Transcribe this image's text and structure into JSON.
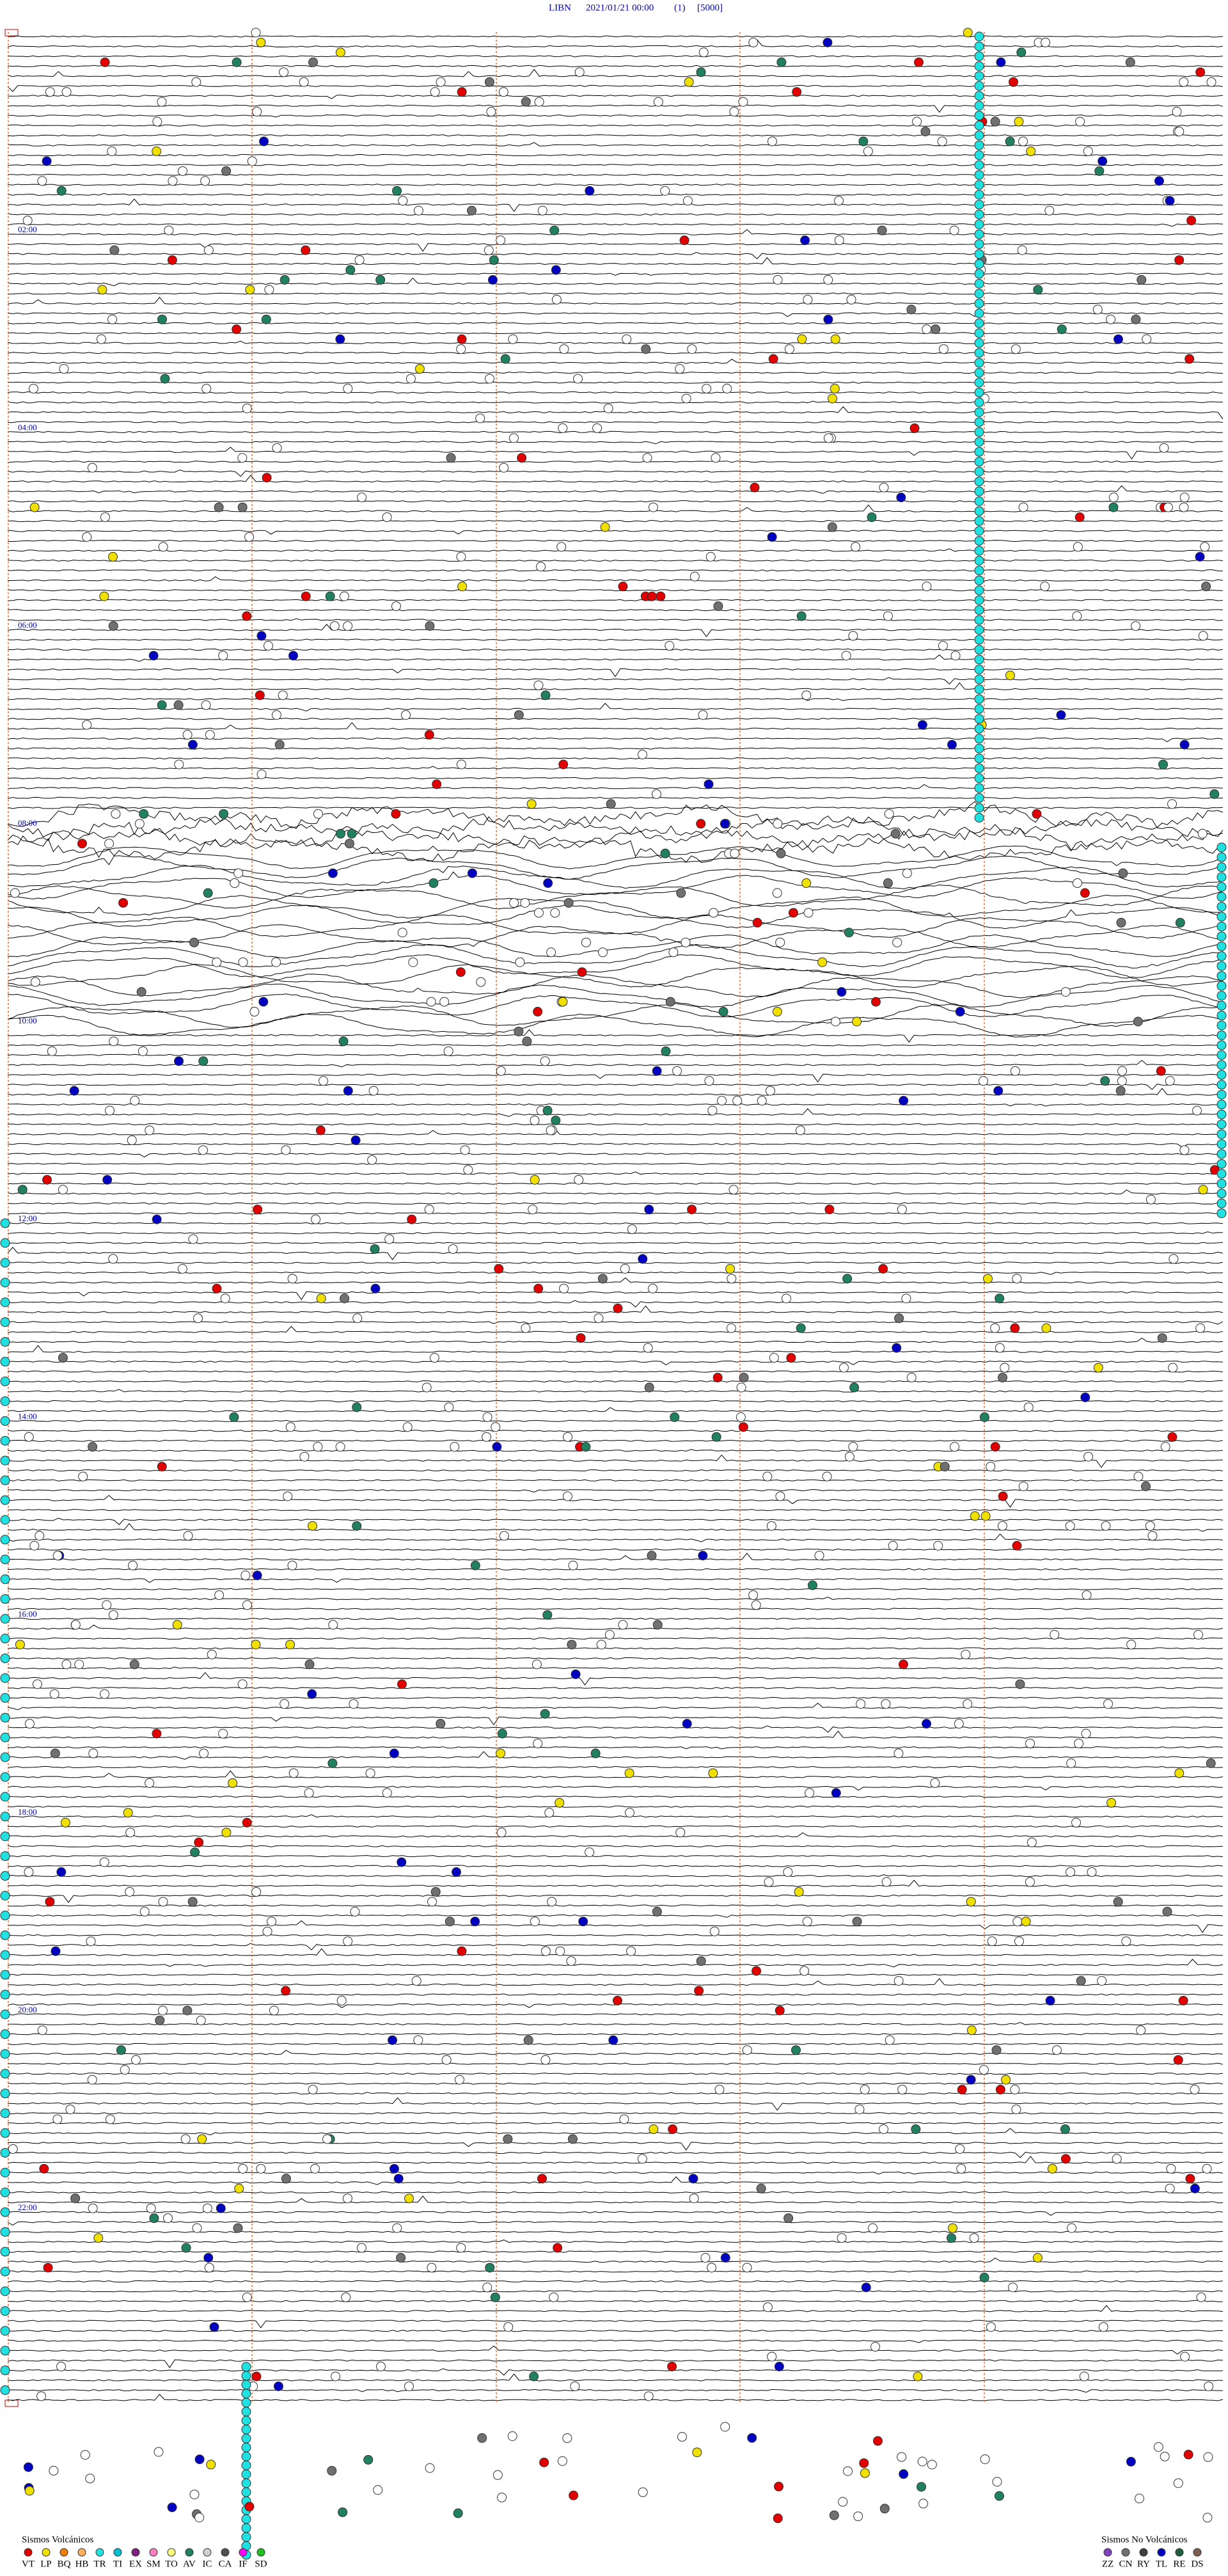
{
  "header": {
    "station": "LIBN",
    "datetime": "2021/01/21 00:00",
    "channel": "(1)",
    "scale": "[5000]"
  },
  "hour_labels": [
    "02:00",
    "04:00",
    "06:00",
    "08:00",
    "10:00",
    "12:00",
    "14:00",
    "16:00",
    "18:00",
    "20:00",
    "22:00"
  ],
  "legend": {
    "volcanic": {
      "title": "Sismos Volcánicos",
      "codes": [
        "VT",
        "LP",
        "BQ",
        "HB",
        "TR",
        "TI",
        "EX",
        "SM",
        "TO",
        "AV",
        "IC",
        "CA",
        "IF",
        "SD"
      ],
      "colors": [
        "#e00000",
        "#f0e000",
        "#f08000",
        "#ffb060",
        "#20e0e0",
        "#00c0d0",
        "#802080",
        "#ff80c0",
        "#ffff80",
        "#208060",
        "#d0d0d0",
        "#505050",
        "#ff00ff",
        "#20c020"
      ]
    },
    "non_volcanic": {
      "title": "Sismos No Volcánicos",
      "codes": [
        "ZZ",
        "CN",
        "RY",
        "TL",
        "RE",
        "DS"
      ],
      "colors": [
        "#8040c0",
        "#707070",
        "#404040",
        "#0000c0",
        "#206040",
        "#806050"
      ]
    }
  }
}
